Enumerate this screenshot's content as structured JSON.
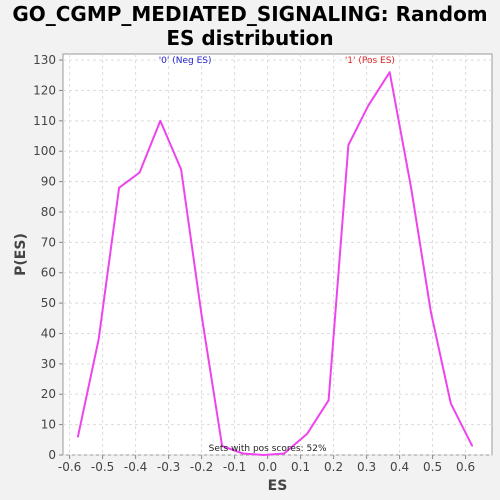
{
  "chart_data": {
    "type": "line",
    "title_line1": "GO_CGMP_MEDIATED_SIGNALING: Random",
    "title_line2": "ES distribution",
    "xlabel": "ES",
    "ylabel": "P(ES)",
    "xlim": [
      -0.62,
      0.68
    ],
    "ylim": [
      0,
      132
    ],
    "xticks": [
      -0.6,
      -0.5,
      -0.4,
      -0.3,
      -0.2,
      -0.1,
      0.0,
      0.1,
      0.2,
      0.3,
      0.4,
      0.5,
      0.6
    ],
    "xtick_labels": [
      "-0.6",
      "-0.5",
      "-0.4",
      "-0.3",
      "-0.2",
      "-0.1",
      "0.0",
      "0.1",
      "0.2",
      "0.3",
      "0.4",
      "0.5",
      "0.6"
    ],
    "yticks": [
      0,
      10,
      20,
      30,
      40,
      50,
      60,
      70,
      80,
      90,
      100,
      110,
      120,
      130
    ],
    "ytick_labels": [
      "0",
      "10",
      "20",
      "30",
      "40",
      "50",
      "60",
      "70",
      "80",
      "90",
      "100",
      "110",
      "120",
      "130"
    ],
    "grid": true,
    "line_color": "#ee44ee",
    "series": [
      {
        "x": [
          -0.575,
          -0.512,
          -0.45,
          -0.388,
          -0.325,
          -0.262,
          -0.2,
          -0.138,
          -0.075,
          -0.012,
          0.05,
          0.12,
          0.185,
          0.245,
          0.305,
          0.37,
          0.435,
          0.495,
          0.555,
          0.62
        ],
        "values": [
          6,
          38,
          88,
          93,
          110,
          94,
          46,
          3,
          0.5,
          0,
          0.5,
          7,
          18,
          102,
          115,
          126,
          88,
          47,
          17,
          3
        ]
      }
    ],
    "annotations": [
      {
        "id": "neg",
        "text": "'0' (Neg ES)",
        "x": -0.25,
        "y": 129,
        "color": "#2222cc"
      },
      {
        "id": "pos",
        "text": "'1' (Pos ES)",
        "x": 0.31,
        "y": 129,
        "color": "#dd2222"
      },
      {
        "id": "sets",
        "text": "Sets with pos scores: 52%",
        "x": 0.0,
        "y": 1.3,
        "color": "#222222"
      }
    ]
  }
}
